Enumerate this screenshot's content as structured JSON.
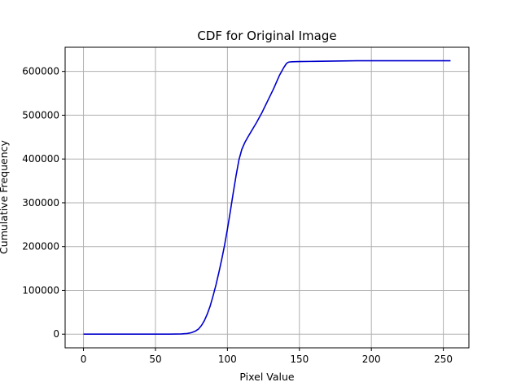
{
  "chart_data": {
    "type": "line",
    "title": "CDF for Original Image",
    "xlabel": "Pixel Value",
    "ylabel": "Cumulative Frequency",
    "xlim": [
      -12.75,
      267.75
    ],
    "ylim": [
      -31200,
      655200
    ],
    "xticks": [
      0,
      50,
      100,
      150,
      200,
      250
    ],
    "yticks": [
      0,
      100000,
      200000,
      300000,
      400000,
      500000,
      600000
    ],
    "grid": true,
    "series_color": "#0000cc",
    "series": [
      {
        "x": [
          0,
          20,
          40,
          60,
          68,
          72,
          75,
          78,
          80,
          82,
          84,
          86,
          88,
          90,
          92,
          94,
          96,
          98,
          100,
          102,
          104,
          106,
          108,
          110,
          112,
          114,
          116,
          118,
          120,
          124,
          128,
          132,
          136,
          139,
          141,
          142,
          143,
          145,
          150,
          160,
          170,
          180,
          190,
          200,
          220,
          240,
          255
        ],
        "y": [
          0,
          0,
          0,
          0,
          500,
          1500,
          3500,
          7500,
          12000,
          20000,
          31000,
          46000,
          64000,
          87000,
          112000,
          140000,
          170000,
          203000,
          240000,
          280000,
          322000,
          362000,
          398000,
          422000,
          437000,
          449000,
          460000,
          471000,
          482000,
          506000,
          533000,
          560000,
          590000,
          608000,
          618000,
          620500,
          621500,
          622000,
          622500,
          623000,
          623500,
          624000,
          624300,
          624400,
          624400,
          624400,
          624400
        ]
      }
    ]
  }
}
